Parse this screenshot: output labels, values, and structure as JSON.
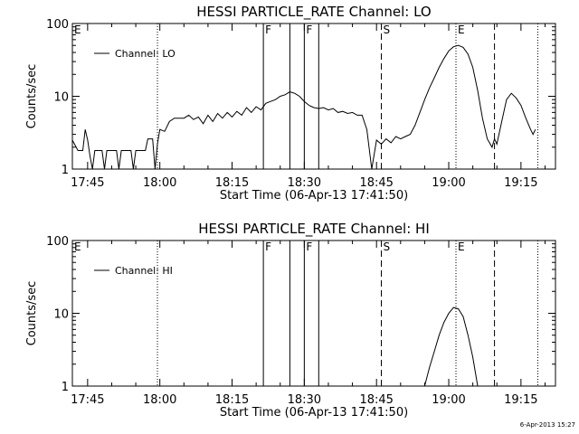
{
  "footer": {
    "date": "6-Apr-2013 15:27"
  },
  "chart_data": [
    {
      "type": "line",
      "title": "HESSI PARTICLE_RATE Channel: LO",
      "xlabel": "Start Time (06-Apr-13 17:41:50)",
      "ylabel": "Counts/sec",
      "y_scale": "log",
      "ylim": [
        1,
        100
      ],
      "y_ticks": [
        "1",
        "10",
        "100"
      ],
      "x_ticks": [
        "17:45",
        "18:00",
        "18:15",
        "18:30",
        "18:45",
        "19:00",
        "19:15"
      ],
      "grid": false,
      "legend": {
        "placement": "top-left",
        "label": "Channel: LO"
      },
      "markers": [
        {
          "label": "E",
          "time": "17:41:50",
          "style": "none"
        },
        {
          "label": "",
          "time": "17:59:30",
          "style": "dotted"
        },
        {
          "label": "F",
          "time": "18:21:30",
          "style": "solid"
        },
        {
          "label": "",
          "time": "18:27:00",
          "style": "solid"
        },
        {
          "label": "F",
          "time": "18:30:00",
          "style": "solid"
        },
        {
          "label": "",
          "time": "18:33:00",
          "style": "solid"
        },
        {
          "label": "S",
          "time": "18:46:00",
          "style": "dashed"
        },
        {
          "label": "E",
          "time": "19:01:30",
          "style": "dotted"
        },
        {
          "label": "",
          "time": "19:09:30",
          "style": "dashed"
        },
        {
          "label": "",
          "time": "19:18:30",
          "style": "dotted"
        }
      ],
      "series": [
        {
          "values": [
            [
              "17:41:50",
              2.5
            ],
            [
              "17:43:00",
              1.8
            ],
            [
              "17:44:00",
              1.8
            ],
            [
              "17:44:30",
              3.5
            ],
            [
              "17:45:00",
              2.5
            ],
            [
              "17:45:30",
              1.5
            ],
            [
              "17:46:00",
              1.0
            ],
            [
              "17:46:30",
              1.8
            ],
            [
              "17:48:00",
              1.8
            ],
            [
              "17:48:30",
              1.0
            ],
            [
              "17:49:00",
              1.8
            ],
            [
              "17:51:00",
              1.8
            ],
            [
              "17:51:30",
              1.0
            ],
            [
              "17:52:00",
              1.8
            ],
            [
              "17:54:00",
              1.8
            ],
            [
              "17:54:30",
              1.0
            ],
            [
              "17:55:00",
              1.8
            ],
            [
              "17:57:00",
              1.8
            ],
            [
              "17:57:30",
              2.6
            ],
            [
              "17:58:30",
              2.6
            ],
            [
              "17:59:00",
              1.0
            ],
            [
              "17:59:30",
              2.2
            ],
            [
              "18:00:00",
              3.5
            ],
            [
              "18:01:00",
              3.3
            ],
            [
              "18:02:00",
              4.5
            ],
            [
              "18:03:00",
              5.0
            ],
            [
              "18:05:00",
              5.0
            ],
            [
              "18:06:00",
              5.5
            ],
            [
              "18:07:00",
              4.8
            ],
            [
              "18:08:00",
              5.2
            ],
            [
              "18:09:00",
              4.2
            ],
            [
              "18:10:00",
              5.5
            ],
            [
              "18:11:00",
              4.5
            ],
            [
              "18:12:00",
              5.8
            ],
            [
              "18:13:00",
              5.0
            ],
            [
              "18:14:00",
              6.0
            ],
            [
              "18:15:00",
              5.2
            ],
            [
              "18:16:00",
              6.2
            ],
            [
              "18:17:00",
              5.5
            ],
            [
              "18:18:00",
              7.0
            ],
            [
              "18:19:00",
              6.0
            ],
            [
              "18:20:00",
              7.2
            ],
            [
              "18:21:00",
              6.5
            ],
            [
              "18:22:00",
              8.0
            ],
            [
              "18:23:00",
              8.5
            ],
            [
              "18:24:00",
              9.0
            ],
            [
              "18:25:00",
              10.0
            ],
            [
              "18:26:00",
              10.5
            ],
            [
              "18:27:00",
              11.5
            ],
            [
              "18:28:00",
              11.0
            ],
            [
              "18:29:00",
              10.0
            ],
            [
              "18:30:00",
              8.5
            ],
            [
              "18:31:00",
              7.5
            ],
            [
              "18:32:00",
              7.0
            ],
            [
              "18:33:00",
              6.8
            ],
            [
              "18:34:00",
              7.0
            ],
            [
              "18:35:00",
              6.5
            ],
            [
              "18:36:00",
              6.8
            ],
            [
              "18:37:00",
              6.0
            ],
            [
              "18:38:00",
              6.2
            ],
            [
              "18:39:00",
              5.8
            ],
            [
              "18:40:00",
              6.0
            ],
            [
              "18:41:00",
              5.5
            ],
            [
              "18:42:00",
              5.5
            ],
            [
              "18:43:00",
              3.5
            ],
            [
              "18:44:00",
              1.0
            ],
            [
              "18:45:00",
              2.5
            ],
            [
              "18:46:00",
              2.2
            ],
            [
              "18:47:00",
              2.6
            ],
            [
              "18:48:00",
              2.3
            ],
            [
              "18:49:00",
              2.8
            ],
            [
              "18:50:00",
              2.6
            ],
            [
              "18:51:00",
              2.8
            ],
            [
              "18:52:00",
              3.0
            ],
            [
              "18:53:00",
              4.0
            ],
            [
              "18:54:00",
              6.0
            ],
            [
              "18:55:00",
              9.0
            ],
            [
              "18:56:00",
              13.0
            ],
            [
              "18:57:00",
              18.0
            ],
            [
              "18:58:00",
              25.0
            ],
            [
              "18:59:00",
              33.0
            ],
            [
              "19:00:00",
              42.0
            ],
            [
              "19:01:00",
              48.0
            ],
            [
              "19:02:00",
              50.0
            ],
            [
              "19:03:00",
              47.0
            ],
            [
              "19:04:00",
              38.0
            ],
            [
              "19:05:00",
              25.0
            ],
            [
              "19:06:00",
              12.0
            ],
            [
              "19:07:00",
              5.0
            ],
            [
              "19:08:00",
              2.6
            ],
            [
              "19:09:00",
              2.0
            ],
            [
              "19:09:30",
              2.6
            ],
            [
              "19:10:00",
              2.2
            ],
            [
              "19:11:00",
              4.5
            ],
            [
              "19:12:00",
              9.0
            ],
            [
              "19:13:00",
              11.0
            ],
            [
              "19:14:00",
              9.5
            ],
            [
              "19:15:00",
              7.5
            ],
            [
              "19:16:00",
              5.0
            ],
            [
              "19:17:00",
              3.5
            ],
            [
              "19:17:30",
              3.0
            ],
            [
              "19:18:00",
              3.5
            ]
          ]
        }
      ]
    },
    {
      "type": "line",
      "title": "HESSI PARTICLE_RATE Channel: HI",
      "xlabel": "Start Time (06-Apr-13 17:41:50)",
      "ylabel": "Counts/sec",
      "y_scale": "log",
      "ylim": [
        1,
        100
      ],
      "y_ticks": [
        "1",
        "10",
        "100"
      ],
      "x_ticks": [
        "17:45",
        "18:00",
        "18:15",
        "18:30",
        "18:45",
        "19:00",
        "19:15"
      ],
      "grid": false,
      "legend": {
        "placement": "top-left",
        "label": "Channel: HI"
      },
      "markers": [
        {
          "label": "E",
          "time": "17:41:50",
          "style": "none"
        },
        {
          "label": "",
          "time": "17:59:30",
          "style": "dotted"
        },
        {
          "label": "F",
          "time": "18:21:30",
          "style": "solid"
        },
        {
          "label": "",
          "time": "18:27:00",
          "style": "solid"
        },
        {
          "label": "F",
          "time": "18:30:00",
          "style": "solid"
        },
        {
          "label": "",
          "time": "18:33:00",
          "style": "solid"
        },
        {
          "label": "S",
          "time": "18:46:00",
          "style": "dashed"
        },
        {
          "label": "E",
          "time": "19:01:30",
          "style": "dotted"
        },
        {
          "label": "",
          "time": "19:09:30",
          "style": "dashed"
        },
        {
          "label": "",
          "time": "19:18:30",
          "style": "dotted"
        }
      ],
      "series": [
        {
          "values": [
            [
              "18:55:00",
              1.0
            ],
            [
              "18:56:00",
              1.8
            ],
            [
              "18:57:00",
              3.0
            ],
            [
              "18:58:00",
              5.0
            ],
            [
              "18:59:00",
              7.5
            ],
            [
              "19:00:00",
              10.0
            ],
            [
              "19:01:00",
              12.0
            ],
            [
              "19:02:00",
              11.5
            ],
            [
              "19:03:00",
              9.0
            ],
            [
              "19:04:00",
              5.0
            ],
            [
              "19:05:00",
              2.5
            ],
            [
              "19:06:00",
              1.0
            ]
          ]
        }
      ]
    }
  ]
}
